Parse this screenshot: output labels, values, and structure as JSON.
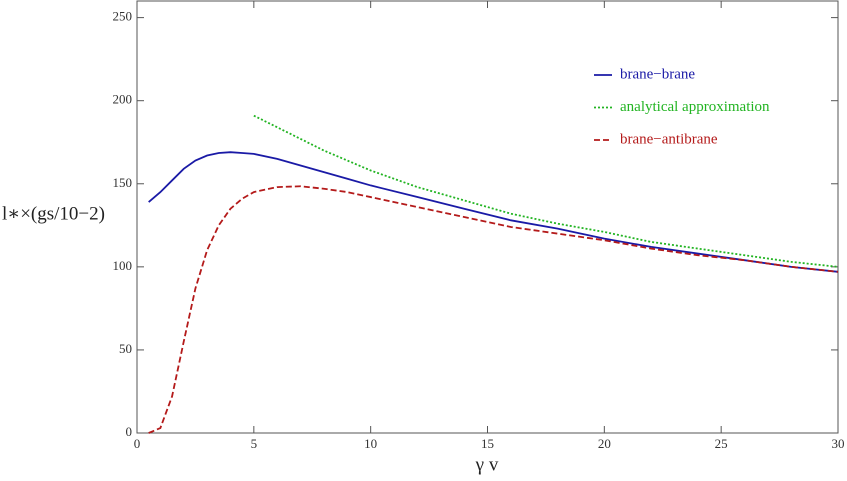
{
  "chart_data": {
    "type": "line",
    "xlabel": "γ v",
    "ylabel": "l∗×(gs/10−2)",
    "x": [
      0.5,
      1,
      1.5,
      2,
      2.5,
      3,
      3.5,
      4,
      4.5,
      5,
      6,
      7,
      8,
      9,
      10,
      12,
      14,
      16,
      18,
      20,
      22,
      24,
      26,
      28,
      30
    ],
    "series": [
      {
        "name": "brane−brane",
        "color": "#1a1aa6",
        "linestyle": "solid",
        "values": [
          139,
          145,
          152,
          159,
          164,
          167,
          168.5,
          169,
          168.5,
          168,
          165,
          161,
          157,
          153,
          149,
          142,
          135,
          128,
          123,
          117,
          112,
          108,
          104,
          100,
          97
        ]
      },
      {
        "name": "analytical approximation",
        "color": "#22b422",
        "linestyle": "dotted",
        "values": [
          null,
          null,
          null,
          null,
          null,
          null,
          null,
          null,
          null,
          191,
          184,
          177,
          170,
          164,
          158,
          148,
          140,
          132,
          126,
          121,
          115,
          111,
          107,
          103,
          100
        ]
      },
      {
        "name": "brane−antibrane",
        "color": "#b41a1a",
        "linestyle": "dashed",
        "values": [
          0,
          3,
          22,
          55,
          87,
          110,
          125,
          135,
          141,
          145,
          148,
          148.5,
          147,
          145,
          142,
          136,
          130,
          124,
          120,
          116,
          111,
          107,
          104,
          100,
          97
        ]
      }
    ],
    "xlim": [
      0,
      30
    ],
    "xticks": [
      0,
      5,
      10,
      15,
      20,
      25,
      30
    ],
    "ylim": [
      0,
      260
    ],
    "yticks": [
      0,
      50,
      100,
      150,
      200,
      250
    ],
    "grid": false,
    "legend": "upper right"
  }
}
